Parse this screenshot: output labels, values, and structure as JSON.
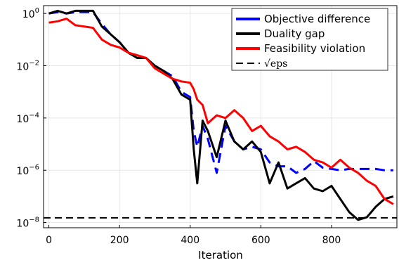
{
  "chart_data": {
    "type": "line",
    "title": "",
    "xlabel": "Iteration",
    "ylabel": "",
    "xlim": [
      -15,
      985
    ],
    "ylim_log10": [
      -8.2,
      0.3
    ],
    "yscale": "log",
    "grid": true,
    "legend_position": "top-right",
    "x_ticks": [
      0,
      200,
      400,
      600,
      800
    ],
    "y_ticks": [
      {
        "exp": -8,
        "base": "10",
        "power": "−8"
      },
      {
        "exp": -6,
        "base": "10",
        "power": "−6"
      },
      {
        "exp": -4,
        "base": "10",
        "power": "−4"
      },
      {
        "exp": -2,
        "base": "10",
        "power": "−2"
      },
      {
        "exp": 0,
        "base": "10",
        "power": "0"
      }
    ],
    "series": [
      {
        "name": "Objective difference",
        "color": "#0000ff",
        "style": "dashed",
        "x": [
          0,
          25,
          50,
          75,
          100,
          125,
          150,
          175,
          200,
          225,
          250,
          275,
          300,
          325,
          350,
          375,
          400,
          410,
          420,
          435,
          450,
          475,
          500,
          525,
          550,
          575,
          600,
          625,
          650,
          675,
          700,
          725,
          750,
          775,
          800,
          825,
          850,
          875,
          900,
          925,
          950,
          975
        ],
        "log10y": [
          0.0,
          0.05,
          0.0,
          0.05,
          0.05,
          0.05,
          -0.4,
          -0.8,
          -1.1,
          -1.5,
          -1.7,
          -1.7,
          -2.0,
          -2.2,
          -2.4,
          -3.0,
          -3.2,
          -4.5,
          -5.1,
          -4.3,
          -4.8,
          -6.1,
          -4.3,
          -4.9,
          -5.2,
          -5.1,
          -5.2,
          -5.7,
          -5.85,
          -5.85,
          -6.1,
          -5.95,
          -5.65,
          -5.9,
          -5.95,
          -6.0,
          -5.95,
          -5.95,
          -5.95,
          -5.95,
          -6.0,
          -6.0
        ]
      },
      {
        "name": "Duality gap",
        "color": "#000000",
        "style": "solid",
        "x": [
          0,
          25,
          50,
          75,
          100,
          125,
          150,
          175,
          200,
          225,
          250,
          275,
          300,
          325,
          350,
          375,
          400,
          410,
          420,
          435,
          450,
          475,
          500,
          525,
          550,
          575,
          600,
          625,
          650,
          675,
          700,
          725,
          750,
          775,
          800,
          825,
          850,
          875,
          900,
          925,
          950,
          975
        ],
        "log10y": [
          0.0,
          0.1,
          0.0,
          0.1,
          0.1,
          0.1,
          -0.5,
          -0.8,
          -1.1,
          -1.5,
          -1.7,
          -1.7,
          -2.0,
          -2.2,
          -2.5,
          -3.1,
          -3.3,
          -5.2,
          -6.5,
          -4.1,
          -4.5,
          -5.5,
          -4.1,
          -4.9,
          -5.2,
          -4.9,
          -5.3,
          -6.5,
          -5.7,
          -6.7,
          -6.5,
          -6.3,
          -6.7,
          -6.8,
          -6.6,
          -7.1,
          -7.6,
          -7.9,
          -7.8,
          -7.4,
          -7.1,
          -7.0
        ]
      },
      {
        "name": "Feasibility violation",
        "color": "#ff0000",
        "style": "solid",
        "x": [
          0,
          25,
          50,
          75,
          100,
          125,
          150,
          175,
          200,
          225,
          250,
          275,
          300,
          325,
          350,
          375,
          400,
          410,
          420,
          435,
          450,
          475,
          500,
          525,
          550,
          575,
          600,
          625,
          650,
          675,
          700,
          725,
          750,
          775,
          800,
          825,
          850,
          875,
          900,
          925,
          950,
          975
        ],
        "log10y": [
          -0.35,
          -0.3,
          -0.2,
          -0.45,
          -0.5,
          -0.55,
          -1.0,
          -1.2,
          -1.3,
          -1.5,
          -1.6,
          -1.7,
          -2.1,
          -2.3,
          -2.5,
          -2.6,
          -2.65,
          -2.9,
          -3.3,
          -3.5,
          -4.2,
          -3.9,
          -4.0,
          -3.7,
          -4.0,
          -4.5,
          -4.3,
          -4.7,
          -4.9,
          -5.2,
          -5.1,
          -5.3,
          -5.6,
          -5.7,
          -5.9,
          -5.6,
          -5.9,
          -6.1,
          -6.4,
          -6.6,
          -7.1,
          -7.3
        ]
      },
      {
        "name": "√eps",
        "color": "#000000",
        "style": "dashed",
        "x": [
          -15,
          985
        ],
        "log10y": [
          -7.82,
          -7.82
        ]
      }
    ]
  }
}
